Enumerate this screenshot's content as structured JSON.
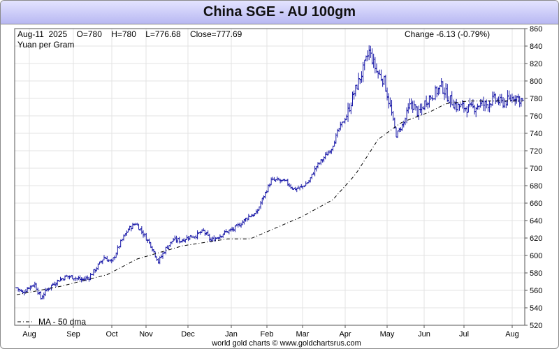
{
  "title": "China SGE - AU 100gm",
  "info": {
    "quote": "Aug-11  2025    O=780    H=780    L=776.68    Close=777.69",
    "change": "Change -6.13  (-0.79%)",
    "unit": "Yuan per Gram"
  },
  "legend": "MA - 50 dma",
  "footer": "world gold charts © www.goldchartsrus.com",
  "colors": {
    "bars": "#1a1aa8",
    "ma": "#000000",
    "grid": "#e3e3e3",
    "title_bg_top": "#e4e4ff",
    "title_bg_bottom": "#b8b8f2"
  },
  "chart_data": {
    "type": "ohlc",
    "title": "China SGE - AU 100gm",
    "ylabel": "Yuan per Gram",
    "ylim": [
      520,
      860
    ],
    "y_ticks": [
      520,
      540,
      560,
      580,
      600,
      620,
      640,
      660,
      680,
      700,
      720,
      740,
      760,
      780,
      800,
      820,
      840,
      860
    ],
    "x_labels": [
      "Aug",
      "Sep",
      "Oct",
      "Nov",
      "Dec",
      "Jan",
      "Feb",
      "Mar",
      "Apr",
      "May",
      "Jun",
      "Jul",
      "Aug"
    ],
    "grid": true,
    "legend_position": "bottom-left",
    "price_anchors": [
      [
        0,
        563
      ],
      [
        4,
        557
      ],
      [
        8,
        564
      ],
      [
        12,
        567
      ],
      [
        16,
        551
      ],
      [
        20,
        561
      ],
      [
        24,
        567
      ],
      [
        28,
        572
      ],
      [
        33,
        576
      ],
      [
        38,
        575
      ],
      [
        43,
        572
      ],
      [
        48,
        575
      ],
      [
        53,
        586
      ],
      [
        58,
        598
      ],
      [
        63,
        592
      ],
      [
        69,
        615
      ],
      [
        74,
        630
      ],
      [
        79,
        637
      ],
      [
        84,
        625
      ],
      [
        89,
        612
      ],
      [
        94,
        593
      ],
      [
        99,
        608
      ],
      [
        104,
        618
      ],
      [
        109,
        617
      ],
      [
        114,
        621
      ],
      [
        119,
        623
      ],
      [
        124,
        628
      ],
      [
        129,
        617
      ],
      [
        134,
        622
      ],
      [
        139,
        627
      ],
      [
        144,
        630
      ],
      [
        149,
        637
      ],
      [
        154,
        645
      ],
      [
        159,
        648
      ],
      [
        164,
        668
      ],
      [
        169,
        686
      ],
      [
        174,
        686
      ],
      [
        179,
        684
      ],
      [
        184,
        676
      ],
      [
        189,
        678
      ],
      [
        194,
        685
      ],
      [
        199,
        702
      ],
      [
        204,
        712
      ],
      [
        209,
        723
      ],
      [
        214,
        745
      ],
      [
        219,
        760
      ],
      [
        224,
        786
      ],
      [
        229,
        808
      ],
      [
        234,
        834
      ],
      [
        239,
        811
      ],
      [
        244,
        800
      ],
      [
        249,
        762
      ],
      [
        252,
        738
      ],
      [
        257,
        752
      ],
      [
        262,
        775
      ],
      [
        267,
        762
      ],
      [
        272,
        778
      ],
      [
        277,
        785
      ],
      [
        282,
        794
      ],
      [
        287,
        780
      ],
      [
        292,
        771
      ],
      [
        297,
        770
      ],
      [
        302,
        768
      ],
      [
        307,
        773
      ],
      [
        312,
        773
      ],
      [
        317,
        779
      ],
      [
        322,
        775
      ],
      [
        327,
        778
      ],
      [
        331,
        783
      ],
      [
        335,
        778
      ]
    ],
    "ma50_anchors": [
      [
        0,
        555
      ],
      [
        30,
        565
      ],
      [
        60,
        578
      ],
      [
        80,
        596
      ],
      [
        110,
        611
      ],
      [
        140,
        619
      ],
      [
        155,
        619
      ],
      [
        170,
        630
      ],
      [
        190,
        645
      ],
      [
        210,
        664
      ],
      [
        225,
        693
      ],
      [
        240,
        733
      ],
      [
        255,
        752
      ],
      [
        275,
        765
      ],
      [
        285,
        774
      ],
      [
        300,
        777
      ],
      [
        336,
        777
      ]
    ],
    "last_bar": {
      "date": "Aug-11 2025",
      "open": 780,
      "high": 780,
      "low": 776.68,
      "close": 777.69
    }
  }
}
